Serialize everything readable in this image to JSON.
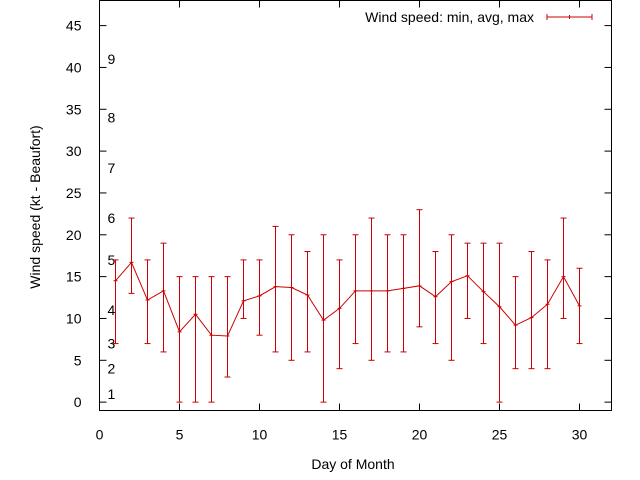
{
  "chart_data": {
    "type": "line",
    "title": "",
    "xlabel": "Day of Month",
    "ylabel": "Wind speed (kt - Beaufort)",
    "xlim": [
      0,
      32
    ],
    "ylim": [
      -1,
      48
    ],
    "grid": false,
    "legend_placement": "top-right",
    "x_ticks": [
      0,
      5,
      10,
      15,
      20,
      25,
      30
    ],
    "x_tick_labels": [
      "0",
      "5",
      "10",
      "15",
      "20",
      "25",
      "30"
    ],
    "y_ticks": [
      0,
      5,
      10,
      15,
      20,
      25,
      30,
      35,
      40,
      45
    ],
    "y_tick_labels": [
      "0",
      "5",
      "10",
      "15",
      "20",
      "25",
      "30",
      "35",
      "40",
      "45"
    ],
    "beaufort_labels": [
      {
        "text": "1",
        "y": 1
      },
      {
        "text": "2",
        "y": 4
      },
      {
        "text": "3",
        "y": 7
      },
      {
        "text": "4",
        "y": 11
      },
      {
        "text": "5",
        "y": 17
      },
      {
        "text": "6",
        "y": 22
      },
      {
        "text": "7",
        "y": 28
      },
      {
        "text": "8",
        "y": 34
      },
      {
        "text": "9",
        "y": 41
      }
    ],
    "series": [
      {
        "name": "Wind speed: min, avg, max",
        "color": "#cc0000",
        "points": [
          {
            "x": 1,
            "avg": 14.5,
            "min": 7,
            "max": 17
          },
          {
            "x": 2,
            "avg": 16.7,
            "min": 13,
            "max": 22
          },
          {
            "x": 3,
            "avg": 12.2,
            "min": 7,
            "max": 17
          },
          {
            "x": 4,
            "avg": 13.3,
            "min": 6,
            "max": 19
          },
          {
            "x": 5,
            "avg": 8.4,
            "min": 0,
            "max": 15
          },
          {
            "x": 6,
            "avg": 10.5,
            "min": 0,
            "max": 15
          },
          {
            "x": 7,
            "avg": 8.0,
            "min": 0,
            "max": 15
          },
          {
            "x": 8,
            "avg": 7.9,
            "min": 3,
            "max": 15
          },
          {
            "x": 9,
            "avg": 12.1,
            "min": 10,
            "max": 17
          },
          {
            "x": 10,
            "avg": 12.7,
            "min": 8,
            "max": 17
          },
          {
            "x": 11,
            "avg": 13.8,
            "min": 6,
            "max": 21
          },
          {
            "x": 12,
            "avg": 13.7,
            "min": 5,
            "max": 20
          },
          {
            "x": 13,
            "avg": 12.8,
            "min": 6,
            "max": 18
          },
          {
            "x": 14,
            "avg": 9.8,
            "min": 0,
            "max": 20
          },
          {
            "x": 15,
            "avg": 11.2,
            "min": 4,
            "max": 17
          },
          {
            "x": 16,
            "avg": 13.3,
            "min": 7,
            "max": 20
          },
          {
            "x": 17,
            "avg": 13.3,
            "min": 5,
            "max": 22
          },
          {
            "x": 18,
            "avg": 13.3,
            "min": 6,
            "max": 20
          },
          {
            "x": 19,
            "avg": 13.6,
            "min": 6,
            "max": 20
          },
          {
            "x": 20,
            "avg": 13.9,
            "min": 9,
            "max": 23
          },
          {
            "x": 21,
            "avg": 12.6,
            "min": 7,
            "max": 18
          },
          {
            "x": 22,
            "avg": 14.4,
            "min": 5,
            "max": 20
          },
          {
            "x": 23,
            "avg": 15.1,
            "min": 10,
            "max": 19
          },
          {
            "x": 24,
            "avg": 13.2,
            "min": 7,
            "max": 19
          },
          {
            "x": 25,
            "avg": 11.4,
            "min": 0,
            "max": 19
          },
          {
            "x": 26,
            "avg": 9.2,
            "min": 4,
            "max": 15
          },
          {
            "x": 27,
            "avg": 10.1,
            "min": 4,
            "max": 18
          },
          {
            "x": 28,
            "avg": 11.7,
            "min": 4,
            "max": 17
          },
          {
            "x": 29,
            "avg": 15.0,
            "min": 10,
            "max": 22
          },
          {
            "x": 30,
            "avg": 11.5,
            "min": 7,
            "max": 16
          }
        ]
      }
    ]
  }
}
